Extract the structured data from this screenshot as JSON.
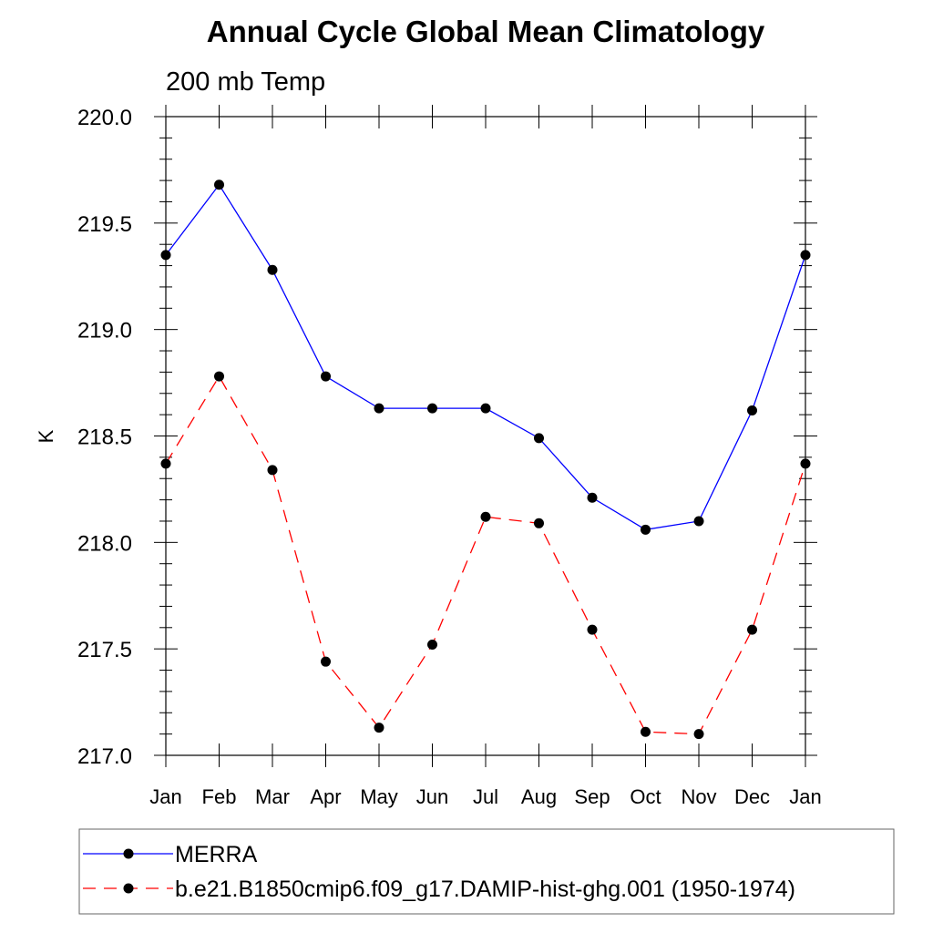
{
  "chart_data": {
    "type": "line",
    "title": "Annual Cycle Global Mean Climatology",
    "subtitle": "200 mb Temp",
    "xlabel": "",
    "ylabel": "K",
    "categories": [
      "Jan",
      "Feb",
      "Mar",
      "Apr",
      "May",
      "Jun",
      "Jul",
      "Aug",
      "Sep",
      "Oct",
      "Nov",
      "Dec",
      "Jan"
    ],
    "ylim": [
      217.0,
      220.0
    ],
    "yticks": [
      "217.0",
      "217.5",
      "218.0",
      "218.5",
      "219.0",
      "219.5",
      "220.0"
    ],
    "grid": false,
    "legend_position": "bottom",
    "series": [
      {
        "name": "MERRA",
        "color": "#0000ff",
        "line_style": "solid",
        "marker": "filled-circle",
        "values": [
          219.35,
          219.68,
          219.28,
          218.78,
          218.63,
          218.63,
          218.63,
          218.49,
          218.21,
          218.06,
          218.1,
          218.62,
          219.35
        ]
      },
      {
        "name": "b.e21.B1850cmip6.f09_g17.DAMIP-hist-ghg.001 (1950-1974)",
        "color": "#ff0000",
        "line_style": "dashed",
        "marker": "filled-circle",
        "values": [
          218.37,
          218.78,
          218.34,
          217.44,
          217.13,
          217.52,
          218.12,
          218.09,
          217.59,
          217.11,
          217.1,
          217.59,
          218.37
        ]
      }
    ]
  }
}
